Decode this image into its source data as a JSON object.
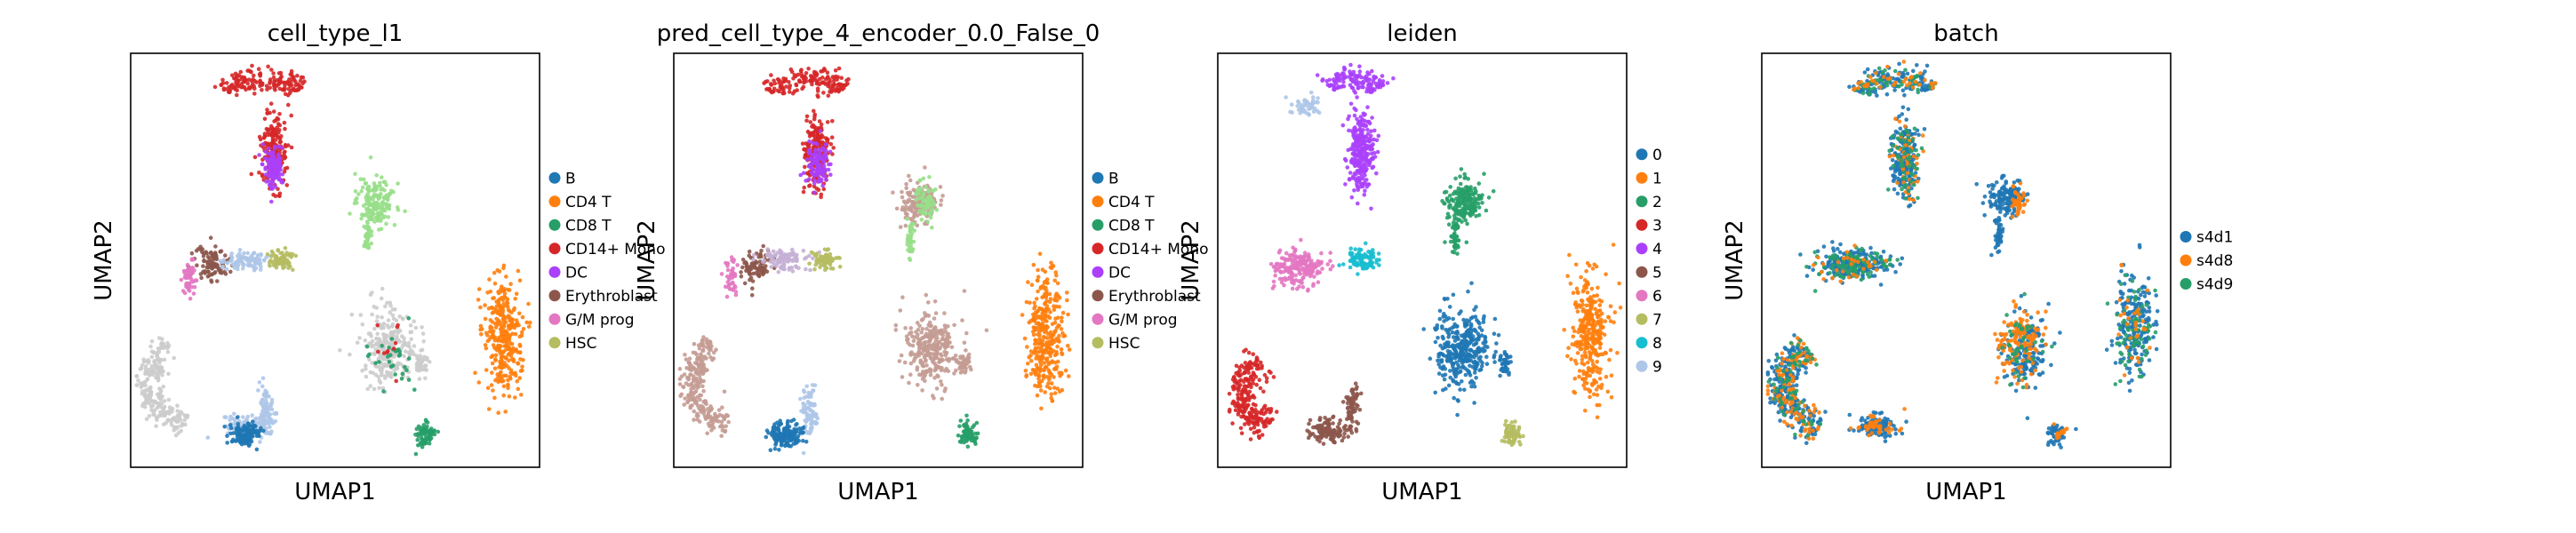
{
  "chart_data": [
    {
      "type": "scatter",
      "title": "cell_type_l1",
      "xlabel": "UMAP1",
      "ylabel": "UMAP2",
      "legend_location": "right",
      "grid": false,
      "legend": [
        {
          "label": "B",
          "color": "#1f77b4"
        },
        {
          "label": "CD4 T",
          "color": "#ff7f0e"
        },
        {
          "label": "CD8 T",
          "color": "#279e68"
        },
        {
          "label": "CD14+ Mono",
          "color": "#d62728"
        },
        {
          "label": "DC",
          "color": "#aa40fc"
        },
        {
          "label": "Erythroblast",
          "color": "#8c564b"
        },
        {
          "label": "G/M prog",
          "color": "#e377c2"
        },
        {
          "label": "HSC",
          "color": "#b5bd61"
        }
      ],
      "clusters": [
        {
          "color": "#d62728",
          "shape": "arc",
          "cx": 0.33,
          "cy": 0.11,
          "rx": 0.1,
          "ry": 0.05,
          "a0": 200,
          "a1": 330,
          "thick": 0.03,
          "n": 160
        },
        {
          "color": "#d62728",
          "shape": "blob",
          "cx": 0.35,
          "cy": 0.24,
          "rx": 0.035,
          "ry": 0.1,
          "n": 200
        },
        {
          "color": "#aa40fc",
          "shape": "blob",
          "cx": 0.35,
          "cy": 0.27,
          "rx": 0.03,
          "ry": 0.06,
          "n": 110
        },
        {
          "color": "#98df8a",
          "shape": "blob",
          "cx": 0.6,
          "cy": 0.36,
          "rx": 0.05,
          "ry": 0.06,
          "n": 170
        },
        {
          "color": "#98df8a",
          "shape": "blob",
          "cx": 0.58,
          "cy": 0.44,
          "rx": 0.012,
          "ry": 0.05,
          "n": 40
        },
        {
          "color": "#8c564b",
          "shape": "blob",
          "cx": 0.2,
          "cy": 0.51,
          "rx": 0.045,
          "ry": 0.05,
          "n": 100
        },
        {
          "color": "#e377c2",
          "shape": "blob",
          "cx": 0.14,
          "cy": 0.54,
          "rx": 0.02,
          "ry": 0.05,
          "n": 50
        },
        {
          "color": "#aec7e8",
          "shape": "blob",
          "cx": 0.28,
          "cy": 0.5,
          "rx": 0.06,
          "ry": 0.025,
          "n": 100
        },
        {
          "color": "#b5bd61",
          "shape": "blob",
          "cx": 0.37,
          "cy": 0.5,
          "rx": 0.035,
          "ry": 0.025,
          "n": 70
        },
        {
          "color": "#cccccc",
          "shape": "blob",
          "cx": 0.63,
          "cy": 0.71,
          "rx": 0.07,
          "ry": 0.1,
          "n": 260
        },
        {
          "color": "#cccccc",
          "shape": "blob",
          "cx": 0.71,
          "cy": 0.75,
          "rx": 0.02,
          "ry": 0.03,
          "n": 40
        },
        {
          "color": "#279e68",
          "shape": "blob",
          "cx": 0.65,
          "cy": 0.73,
          "rx": 0.06,
          "ry": 0.08,
          "n": 30
        },
        {
          "color": "#d62728",
          "shape": "blob",
          "cx": 0.63,
          "cy": 0.7,
          "rx": 0.05,
          "ry": 0.07,
          "n": 10
        },
        {
          "color": "#ff7f0e",
          "shape": "blob",
          "cx": 0.91,
          "cy": 0.68,
          "rx": 0.05,
          "ry": 0.16,
          "n": 320
        },
        {
          "color": "#cccccc",
          "shape": "arc",
          "cx": 0.18,
          "cy": 0.79,
          "rx": 0.14,
          "ry": 0.12,
          "a0": 110,
          "a1": 230,
          "thick": 0.03,
          "n": 220
        },
        {
          "color": "#aec7e8",
          "shape": "blob",
          "cx": 0.28,
          "cy": 0.9,
          "rx": 0.06,
          "ry": 0.03,
          "n": 90
        },
        {
          "color": "#aec7e8",
          "shape": "blob",
          "cx": 0.33,
          "cy": 0.87,
          "rx": 0.022,
          "ry": 0.07,
          "n": 90
        },
        {
          "color": "#1f77b4",
          "shape": "blob",
          "cx": 0.28,
          "cy": 0.92,
          "rx": 0.04,
          "ry": 0.03,
          "n": 120
        },
        {
          "color": "#279e68",
          "shape": "blob",
          "cx": 0.72,
          "cy": 0.92,
          "rx": 0.025,
          "ry": 0.03,
          "n": 70
        },
        {
          "color": "#cccccc",
          "shape": "blob",
          "cx": 0.07,
          "cy": 0.76,
          "rx": 0.012,
          "ry": 0.04,
          "n": 25
        }
      ]
    },
    {
      "type": "scatter",
      "title": "pred_cell_type_4_encoder_0.0_False_0",
      "xlabel": "UMAP1",
      "ylabel": "UMAP2",
      "legend_location": "right",
      "grid": false,
      "legend": [
        {
          "label": "B",
          "color": "#1f77b4"
        },
        {
          "label": "CD4 T",
          "color": "#ff7f0e"
        },
        {
          "label": "CD8 T",
          "color": "#279e68"
        },
        {
          "label": "CD14+ Mono",
          "color": "#d62728"
        },
        {
          "label": "DC",
          "color": "#aa40fc"
        },
        {
          "label": "Erythroblast",
          "color": "#8c564b"
        },
        {
          "label": "G/M prog",
          "color": "#e377c2"
        },
        {
          "label": "HSC",
          "color": "#b5bd61"
        }
      ],
      "clusters": [
        {
          "color": "#d62728",
          "shape": "arc",
          "cx": 0.33,
          "cy": 0.11,
          "rx": 0.1,
          "ry": 0.05,
          "a0": 200,
          "a1": 330,
          "thick": 0.03,
          "n": 160
        },
        {
          "color": "#d62728",
          "shape": "blob",
          "cx": 0.35,
          "cy": 0.24,
          "rx": 0.035,
          "ry": 0.1,
          "n": 200
        },
        {
          "color": "#aa40fc",
          "shape": "blob",
          "cx": 0.35,
          "cy": 0.27,
          "rx": 0.03,
          "ry": 0.06,
          "n": 110
        },
        {
          "color": "#c49c94",
          "shape": "blob",
          "cx": 0.6,
          "cy": 0.36,
          "rx": 0.05,
          "ry": 0.06,
          "n": 140
        },
        {
          "color": "#98df8a",
          "shape": "blob",
          "cx": 0.62,
          "cy": 0.36,
          "rx": 0.03,
          "ry": 0.05,
          "n": 70
        },
        {
          "color": "#98df8a",
          "shape": "blob",
          "cx": 0.58,
          "cy": 0.44,
          "rx": 0.012,
          "ry": 0.05,
          "n": 40
        },
        {
          "color": "#8c564b",
          "shape": "blob",
          "cx": 0.2,
          "cy": 0.51,
          "rx": 0.045,
          "ry": 0.05,
          "n": 80
        },
        {
          "color": "#e377c2",
          "shape": "blob",
          "cx": 0.14,
          "cy": 0.54,
          "rx": 0.02,
          "ry": 0.05,
          "n": 40
        },
        {
          "color": "#c5b0d5",
          "shape": "blob",
          "cx": 0.27,
          "cy": 0.5,
          "rx": 0.06,
          "ry": 0.025,
          "n": 100
        },
        {
          "color": "#b5bd61",
          "shape": "blob",
          "cx": 0.37,
          "cy": 0.5,
          "rx": 0.035,
          "ry": 0.025,
          "n": 70
        },
        {
          "color": "#c49c94",
          "shape": "blob",
          "cx": 0.63,
          "cy": 0.71,
          "rx": 0.07,
          "ry": 0.1,
          "n": 280
        },
        {
          "color": "#c49c94",
          "shape": "blob",
          "cx": 0.71,
          "cy": 0.75,
          "rx": 0.02,
          "ry": 0.03,
          "n": 40
        },
        {
          "color": "#ff7f0e",
          "shape": "blob",
          "cx": 0.91,
          "cy": 0.68,
          "rx": 0.05,
          "ry": 0.16,
          "n": 320
        },
        {
          "color": "#c49c94",
          "shape": "arc",
          "cx": 0.18,
          "cy": 0.79,
          "rx": 0.14,
          "ry": 0.12,
          "a0": 110,
          "a1": 230,
          "thick": 0.03,
          "n": 220
        },
        {
          "color": "#aec7e8",
          "shape": "blob",
          "cx": 0.33,
          "cy": 0.87,
          "rx": 0.022,
          "ry": 0.07,
          "n": 90
        },
        {
          "color": "#1f77b4",
          "shape": "blob",
          "cx": 0.27,
          "cy": 0.92,
          "rx": 0.05,
          "ry": 0.03,
          "n": 160
        },
        {
          "color": "#279e68",
          "shape": "blob",
          "cx": 0.72,
          "cy": 0.92,
          "rx": 0.025,
          "ry": 0.03,
          "n": 70
        },
        {
          "color": "#c49c94",
          "shape": "blob",
          "cx": 0.07,
          "cy": 0.76,
          "rx": 0.012,
          "ry": 0.04,
          "n": 25
        }
      ]
    },
    {
      "type": "scatter",
      "title": "leiden",
      "xlabel": "UMAP1",
      "ylabel": "UMAP2",
      "legend_location": "right",
      "grid": false,
      "legend": [
        {
          "label": "0",
          "color": "#1f77b4"
        },
        {
          "label": "1",
          "color": "#ff7f0e"
        },
        {
          "label": "2",
          "color": "#279e68"
        },
        {
          "label": "3",
          "color": "#d62728"
        },
        {
          "label": "4",
          "color": "#aa40fc"
        },
        {
          "label": "5",
          "color": "#8c564b"
        },
        {
          "label": "6",
          "color": "#e377c2"
        },
        {
          "label": "7",
          "color": "#b5bd61"
        },
        {
          "label": "8",
          "color": "#17becf"
        },
        {
          "label": "9",
          "color": "#aec7e8"
        }
      ],
      "clusters": [
        {
          "color": "#aec7e8",
          "shape": "blob",
          "cx": 0.22,
          "cy": 0.13,
          "rx": 0.05,
          "ry": 0.03,
          "n": 50
        },
        {
          "color": "#aa40fc",
          "shape": "arc",
          "cx": 0.33,
          "cy": 0.11,
          "rx": 0.08,
          "ry": 0.05,
          "a0": 220,
          "a1": 330,
          "thick": 0.03,
          "n": 130
        },
        {
          "color": "#aa40fc",
          "shape": "blob",
          "cx": 0.35,
          "cy": 0.24,
          "rx": 0.035,
          "ry": 0.11,
          "n": 260
        },
        {
          "color": "#279e68",
          "shape": "blob",
          "cx": 0.6,
          "cy": 0.36,
          "rx": 0.05,
          "ry": 0.06,
          "n": 190
        },
        {
          "color": "#279e68",
          "shape": "blob",
          "cx": 0.58,
          "cy": 0.44,
          "rx": 0.012,
          "ry": 0.05,
          "n": 40
        },
        {
          "color": "#e377c2",
          "shape": "blob",
          "cx": 0.2,
          "cy": 0.52,
          "rx": 0.07,
          "ry": 0.05,
          "n": 200
        },
        {
          "color": "#17becf",
          "shape": "blob",
          "cx": 0.35,
          "cy": 0.5,
          "rx": 0.04,
          "ry": 0.03,
          "n": 90
        },
        {
          "color": "#1f77b4",
          "shape": "blob",
          "cx": 0.6,
          "cy": 0.71,
          "rx": 0.075,
          "ry": 0.11,
          "n": 340
        },
        {
          "color": "#1f77b4",
          "shape": "blob",
          "cx": 0.7,
          "cy": 0.75,
          "rx": 0.02,
          "ry": 0.03,
          "n": 40
        },
        {
          "color": "#ff7f0e",
          "shape": "blob",
          "cx": 0.91,
          "cy": 0.68,
          "rx": 0.05,
          "ry": 0.16,
          "n": 320
        },
        {
          "color": "#d62728",
          "shape": "arc",
          "cx": 0.19,
          "cy": 0.82,
          "rx": 0.13,
          "ry": 0.1,
          "a0": 120,
          "a1": 230,
          "thick": 0.04,
          "n": 240
        },
        {
          "color": "#8c564b",
          "shape": "blob",
          "cx": 0.27,
          "cy": 0.91,
          "rx": 0.05,
          "ry": 0.03,
          "n": 120
        },
        {
          "color": "#8c564b",
          "shape": "blob",
          "cx": 0.33,
          "cy": 0.86,
          "rx": 0.02,
          "ry": 0.06,
          "n": 70
        },
        {
          "color": "#b5bd61",
          "shape": "blob",
          "cx": 0.72,
          "cy": 0.92,
          "rx": 0.025,
          "ry": 0.03,
          "n": 70
        }
      ]
    },
    {
      "type": "scatter",
      "title": "batch",
      "xlabel": "UMAP1",
      "ylabel": "UMAP2",
      "legend_location": "right",
      "grid": false,
      "legend": [
        {
          "label": "s4d1",
          "color": "#1f77b4"
        },
        {
          "label": "s4d8",
          "color": "#ff7f0e"
        },
        {
          "label": "s4d9",
          "color": "#279e68"
        }
      ],
      "clusters": [
        {
          "color": "#1f77b4",
          "shape": "arc",
          "cx": 0.33,
          "cy": 0.11,
          "rx": 0.1,
          "ry": 0.05,
          "a0": 200,
          "a1": 330,
          "thick": 0.03,
          "n": 120
        },
        {
          "color": "#279e68",
          "shape": "arc",
          "cx": 0.33,
          "cy": 0.11,
          "rx": 0.1,
          "ry": 0.05,
          "a0": 200,
          "a1": 330,
          "thick": 0.03,
          "n": 50
        },
        {
          "color": "#ff7f0e",
          "shape": "arc",
          "cx": 0.33,
          "cy": 0.11,
          "rx": 0.1,
          "ry": 0.05,
          "a0": 200,
          "a1": 330,
          "thick": 0.03,
          "n": 40
        },
        {
          "color": "#1f77b4",
          "shape": "blob",
          "cx": 0.35,
          "cy": 0.25,
          "rx": 0.035,
          "ry": 0.11,
          "n": 200
        },
        {
          "color": "#ff7f0e",
          "shape": "blob",
          "cx": 0.35,
          "cy": 0.25,
          "rx": 0.035,
          "ry": 0.11,
          "n": 50
        },
        {
          "color": "#279e68",
          "shape": "blob",
          "cx": 0.35,
          "cy": 0.25,
          "rx": 0.035,
          "ry": 0.11,
          "n": 50
        },
        {
          "color": "#1f77b4",
          "shape": "blob",
          "cx": 0.6,
          "cy": 0.35,
          "rx": 0.05,
          "ry": 0.05,
          "n": 150
        },
        {
          "color": "#ff7f0e",
          "shape": "blob",
          "cx": 0.63,
          "cy": 0.36,
          "rx": 0.02,
          "ry": 0.04,
          "n": 40
        },
        {
          "color": "#1f77b4",
          "shape": "blob",
          "cx": 0.58,
          "cy": 0.44,
          "rx": 0.012,
          "ry": 0.05,
          "n": 40
        },
        {
          "color": "#1f77b4",
          "shape": "blob",
          "cx": 0.22,
          "cy": 0.51,
          "rx": 0.1,
          "ry": 0.04,
          "n": 200
        },
        {
          "color": "#279e68",
          "shape": "blob",
          "cx": 0.22,
          "cy": 0.51,
          "rx": 0.1,
          "ry": 0.04,
          "n": 90
        },
        {
          "color": "#ff7f0e",
          "shape": "blob",
          "cx": 0.22,
          "cy": 0.51,
          "rx": 0.1,
          "ry": 0.04,
          "n": 30
        },
        {
          "color": "#1f77b4",
          "shape": "blob",
          "cx": 0.64,
          "cy": 0.72,
          "rx": 0.06,
          "ry": 0.1,
          "n": 170
        },
        {
          "color": "#ff7f0e",
          "shape": "blob",
          "cx": 0.63,
          "cy": 0.7,
          "rx": 0.06,
          "ry": 0.1,
          "n": 130
        },
        {
          "color": "#279e68",
          "shape": "blob",
          "cx": 0.64,
          "cy": 0.72,
          "rx": 0.06,
          "ry": 0.1,
          "n": 40
        },
        {
          "color": "#1f77b4",
          "shape": "blob",
          "cx": 0.91,
          "cy": 0.66,
          "rx": 0.05,
          "ry": 0.14,
          "n": 200
        },
        {
          "color": "#279e68",
          "shape": "blob",
          "cx": 0.91,
          "cy": 0.66,
          "rx": 0.05,
          "ry": 0.14,
          "n": 70
        },
        {
          "color": "#ff7f0e",
          "shape": "blob",
          "cx": 0.91,
          "cy": 0.66,
          "rx": 0.05,
          "ry": 0.14,
          "n": 30
        },
        {
          "color": "#1f77b4",
          "shape": "arc",
          "cx": 0.19,
          "cy": 0.8,
          "rx": 0.14,
          "ry": 0.11,
          "a0": 110,
          "a1": 235,
          "thick": 0.035,
          "n": 260
        },
        {
          "color": "#ff7f0e",
          "shape": "arc",
          "cx": 0.19,
          "cy": 0.8,
          "rx": 0.14,
          "ry": 0.11,
          "a0": 110,
          "a1": 235,
          "thick": 0.035,
          "n": 120
        },
        {
          "color": "#279e68",
          "shape": "arc",
          "cx": 0.19,
          "cy": 0.8,
          "rx": 0.14,
          "ry": 0.11,
          "a0": 110,
          "a1": 235,
          "thick": 0.035,
          "n": 60
        },
        {
          "color": "#1f77b4",
          "shape": "blob",
          "cx": 0.28,
          "cy": 0.9,
          "rx": 0.06,
          "ry": 0.03,
          "n": 100
        },
        {
          "color": "#ff7f0e",
          "shape": "blob",
          "cx": 0.28,
          "cy": 0.9,
          "rx": 0.06,
          "ry": 0.03,
          "n": 40
        },
        {
          "color": "#1f77b4",
          "shape": "blob",
          "cx": 0.72,
          "cy": 0.92,
          "rx": 0.025,
          "ry": 0.03,
          "n": 50
        },
        {
          "color": "#ff7f0e",
          "shape": "blob",
          "cx": 0.73,
          "cy": 0.92,
          "rx": 0.015,
          "ry": 0.02,
          "n": 15
        }
      ]
    }
  ]
}
